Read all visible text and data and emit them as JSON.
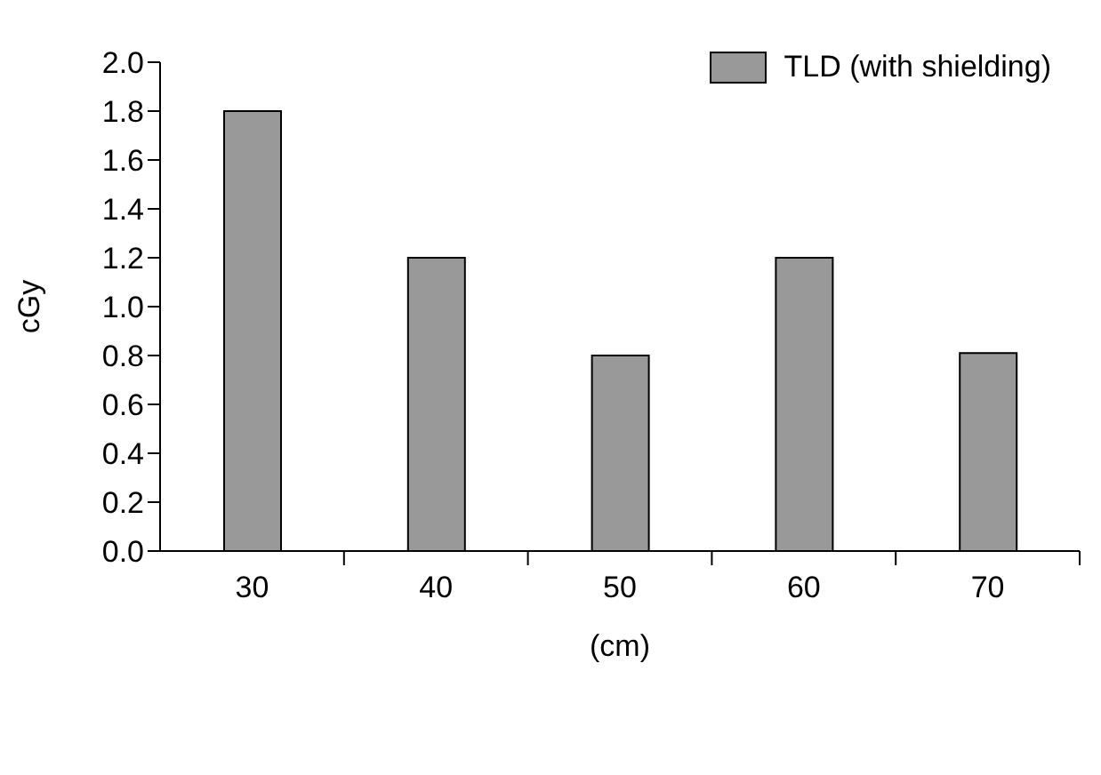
{
  "chart_data": {
    "type": "bar",
    "xlabel": "(cm)",
    "ylabel": "cGy",
    "categories": [
      "30",
      "40",
      "50",
      "60",
      "70"
    ],
    "series": [
      {
        "name": "TLD (with shielding)",
        "color": "#999999",
        "values": [
          1.8,
          1.2,
          0.8,
          1.2,
          0.81
        ]
      }
    ],
    "ylim": [
      0,
      2.0
    ],
    "yticks": [
      {
        "value": 0,
        "label": "0.0"
      },
      {
        "value": 0.2,
        "label": "0.2"
      },
      {
        "value": 0.4,
        "label": "0.4"
      },
      {
        "value": 0.6,
        "label": "0.6"
      },
      {
        "value": 0.8,
        "label": "0.8"
      },
      {
        "value": 1.0,
        "label": "1.0"
      },
      {
        "value": 1.2,
        "label": "1.2"
      },
      {
        "value": 1.4,
        "label": "1.4"
      },
      {
        "value": 1.6,
        "label": "1.6"
      },
      {
        "value": 1.8,
        "label": "1.8"
      },
      {
        "value": 2.0,
        "label": "2.0"
      }
    ],
    "grid": false,
    "legend": "top right"
  }
}
